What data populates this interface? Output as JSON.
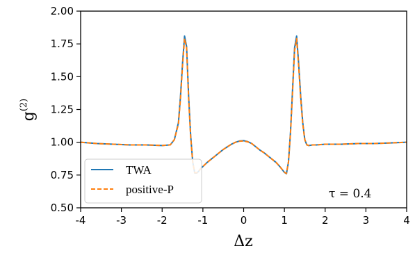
{
  "chart_data": {
    "type": "line",
    "xlabel": "Δz",
    "ylabel": "g(2)",
    "xlim": [
      -4,
      4
    ],
    "ylim": [
      0.5,
      2.0
    ],
    "x_ticks": [
      {
        "value": -4,
        "label": "-4"
      },
      {
        "value": -3,
        "label": "-3"
      },
      {
        "value": -2,
        "label": "-2"
      },
      {
        "value": -1,
        "label": "-1"
      },
      {
        "value": 0,
        "label": "0"
      },
      {
        "value": 1,
        "label": "1"
      },
      {
        "value": 2,
        "label": "2"
      },
      {
        "value": 3,
        "label": "3"
      },
      {
        "value": 4,
        "label": "4"
      }
    ],
    "y_ticks": [
      {
        "value": 0.5,
        "label": "0.50"
      },
      {
        "value": 0.75,
        "label": "0.75"
      },
      {
        "value": 1.0,
        "label": "1.00"
      },
      {
        "value": 1.25,
        "label": "1.25"
      },
      {
        "value": 1.5,
        "label": "1.50"
      },
      {
        "value": 1.75,
        "label": "1.75"
      },
      {
        "value": 2.0,
        "label": "2.00"
      }
    ],
    "grid": false,
    "legend_position": "bottom-left",
    "annotation": "τ = 0.4",
    "series": [
      {
        "name": "TWA",
        "color": "#1f77b4",
        "style": "solid",
        "x": [
          -4.0,
          -3.6,
          -3.2,
          -2.8,
          -2.4,
          -2.0,
          -1.8,
          -1.7,
          -1.6,
          -1.55,
          -1.5,
          -1.45,
          -1.4,
          -1.35,
          -1.3,
          -1.25,
          -1.2,
          -1.15,
          -1.1,
          -1.05,
          -1.0,
          -0.9,
          -0.8,
          -0.7,
          -0.6,
          -0.5,
          -0.4,
          -0.3,
          -0.2,
          -0.1,
          0.0,
          0.1,
          0.2,
          0.3,
          0.4,
          0.5,
          0.6,
          0.7,
          0.8,
          0.9,
          1.0,
          1.05,
          1.1,
          1.15,
          1.2,
          1.25,
          1.3,
          1.35,
          1.4,
          1.45,
          1.5,
          1.55,
          1.6,
          1.7,
          1.8,
          2.0,
          2.4,
          2.8,
          3.2,
          3.6,
          4.0
        ],
        "y": [
          1.0,
          0.99,
          0.985,
          0.98,
          0.98,
          0.975,
          0.98,
          1.02,
          1.15,
          1.35,
          1.6,
          1.81,
          1.73,
          1.35,
          1.05,
          0.85,
          0.765,
          0.765,
          0.78,
          0.8,
          0.815,
          0.845,
          0.87,
          0.895,
          0.92,
          0.945,
          0.965,
          0.985,
          1.0,
          1.01,
          1.012,
          1.005,
          0.99,
          0.965,
          0.94,
          0.92,
          0.895,
          0.87,
          0.845,
          0.81,
          0.77,
          0.76,
          0.85,
          1.08,
          1.4,
          1.72,
          1.81,
          1.6,
          1.35,
          1.15,
          1.02,
          0.98,
          0.975,
          0.98,
          0.98,
          0.985,
          0.985,
          0.99,
          0.99,
          0.995,
          1.0
        ]
      },
      {
        "name": "positive-P",
        "color": "#ff7f0e",
        "style": "dashed",
        "x": [
          -4.0,
          -3.6,
          -3.2,
          -2.8,
          -2.4,
          -2.0,
          -1.8,
          -1.7,
          -1.6,
          -1.55,
          -1.5,
          -1.45,
          -1.4,
          -1.35,
          -1.3,
          -1.25,
          -1.2,
          -1.15,
          -1.1,
          -1.05,
          -1.0,
          -0.9,
          -0.8,
          -0.7,
          -0.6,
          -0.5,
          -0.4,
          -0.3,
          -0.2,
          -0.1,
          0.0,
          0.1,
          0.2,
          0.3,
          0.4,
          0.5,
          0.6,
          0.7,
          0.8,
          0.9,
          1.0,
          1.05,
          1.1,
          1.15,
          1.2,
          1.25,
          1.3,
          1.35,
          1.4,
          1.45,
          1.5,
          1.55,
          1.6,
          1.7,
          1.8,
          2.0,
          2.4,
          2.8,
          3.2,
          3.6,
          4.0
        ],
        "y": [
          1.0,
          0.99,
          0.985,
          0.98,
          0.98,
          0.975,
          0.98,
          1.02,
          1.14,
          1.33,
          1.58,
          1.79,
          1.72,
          1.33,
          1.04,
          0.85,
          0.768,
          0.767,
          0.78,
          0.8,
          0.815,
          0.845,
          0.87,
          0.895,
          0.92,
          0.945,
          0.965,
          0.985,
          1.0,
          1.008,
          1.01,
          1.003,
          0.99,
          0.965,
          0.94,
          0.92,
          0.895,
          0.87,
          0.845,
          0.81,
          0.772,
          0.762,
          0.85,
          1.07,
          1.38,
          1.7,
          1.79,
          1.58,
          1.33,
          1.14,
          1.02,
          0.98,
          0.975,
          0.98,
          0.98,
          0.985,
          0.985,
          0.99,
          0.99,
          0.995,
          1.0
        ]
      }
    ]
  }
}
